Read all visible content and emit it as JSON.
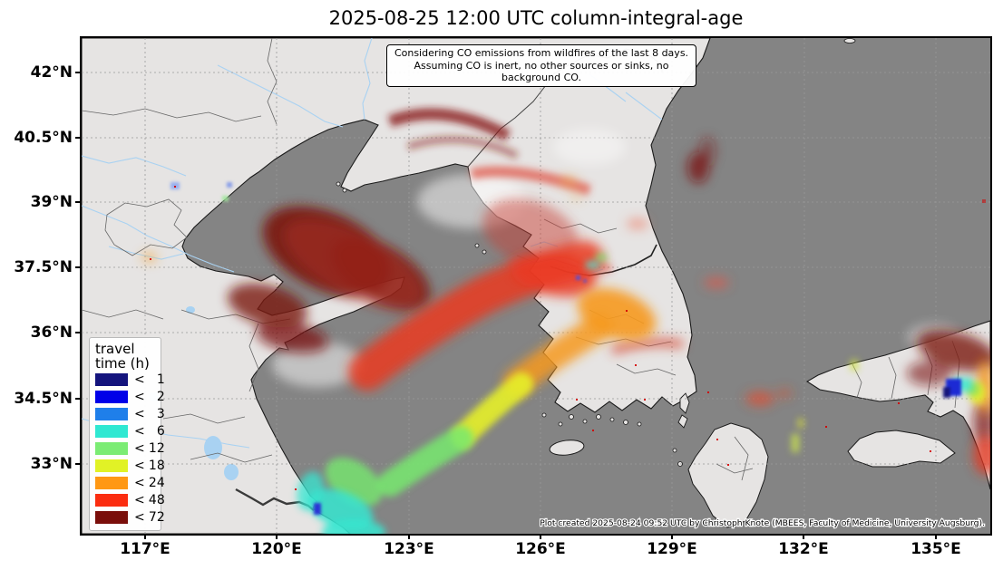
{
  "title": "2025-08-25 12:00 UTC column-integral-age",
  "annotation": {
    "line1": "Considering CO emissions from wildfires of the last 8 days.",
    "line2": "Assuming CO is inert, no other sources or sinks, no background CO."
  },
  "axes": {
    "x_ticks": [
      "117°E",
      "120°E",
      "123°E",
      "126°E",
      "129°E",
      "132°E",
      "135°E"
    ],
    "y_ticks": [
      "42°N",
      "40.5°N",
      "39°N",
      "37.5°N",
      "36°N",
      "34.5°N",
      "33°N"
    ]
  },
  "legend": {
    "title_line1": "travel",
    "title_line2": "time (h)",
    "entries": [
      {
        "symbol": "<",
        "value": "1",
        "color": "#14147d"
      },
      {
        "symbol": "<",
        "value": "2",
        "color": "#0000e8"
      },
      {
        "symbol": "<",
        "value": "3",
        "color": "#1f7fea"
      },
      {
        "symbol": "<",
        "value": "6",
        "color": "#2fe8d2"
      },
      {
        "symbol": "<",
        "value": "12",
        "color": "#7bec74"
      },
      {
        "symbol": "<",
        "value": "18",
        "color": "#e1f226"
      },
      {
        "symbol": "<",
        "value": "24",
        "color": "#ff9814"
      },
      {
        "symbol": "<",
        "value": "48",
        "color": "#fb2d10"
      },
      {
        "symbol": "<",
        "value": "72",
        "color": "#7a0e0a"
      }
    ]
  },
  "credit": "Plot created 2025-08-24 09:52 UTC by Christoph Knote (MBEES, Faculty of Medicine, University Augsburg).",
  "map_colors": {
    "sea": "#848484",
    "land": "#e6e4e3",
    "coast": "#1a1a1a",
    "river": "#a9d2f2",
    "grid": "#999999"
  },
  "map_data": {
    "type": "map",
    "region": "East Asia: Bohai Sea, Yellow Sea, Korean Peninsula, Sea of Japan, western Japan",
    "quantity": "column-integral age of wildfire CO (travel time, hours)",
    "features": [
      {
        "area": "Bohai Sea / Shandong / North China coast",
        "age_category": "< 72 h"
      },
      {
        "area": "central Yellow Sea plume",
        "age_category": "< 48 h"
      },
      {
        "area": "plume bend toward Korean coast",
        "age_category": "< 24 h"
      },
      {
        "area": "plume east of Jiangsu coast",
        "age_category": "< 18 h"
      },
      {
        "area": "near Shanghai / Yangtze estuary (source)",
        "age_category": "< 1 to < 12 h"
      },
      {
        "area": "streaks over North Korea",
        "age_category": "< 48 h"
      },
      {
        "area": "patch in Sea of Japan",
        "age_category": "< 72 h"
      },
      {
        "area": "Kansai / western Honshu, Japan",
        "age_category": "mixed < 1 to < 72 h"
      }
    ]
  }
}
